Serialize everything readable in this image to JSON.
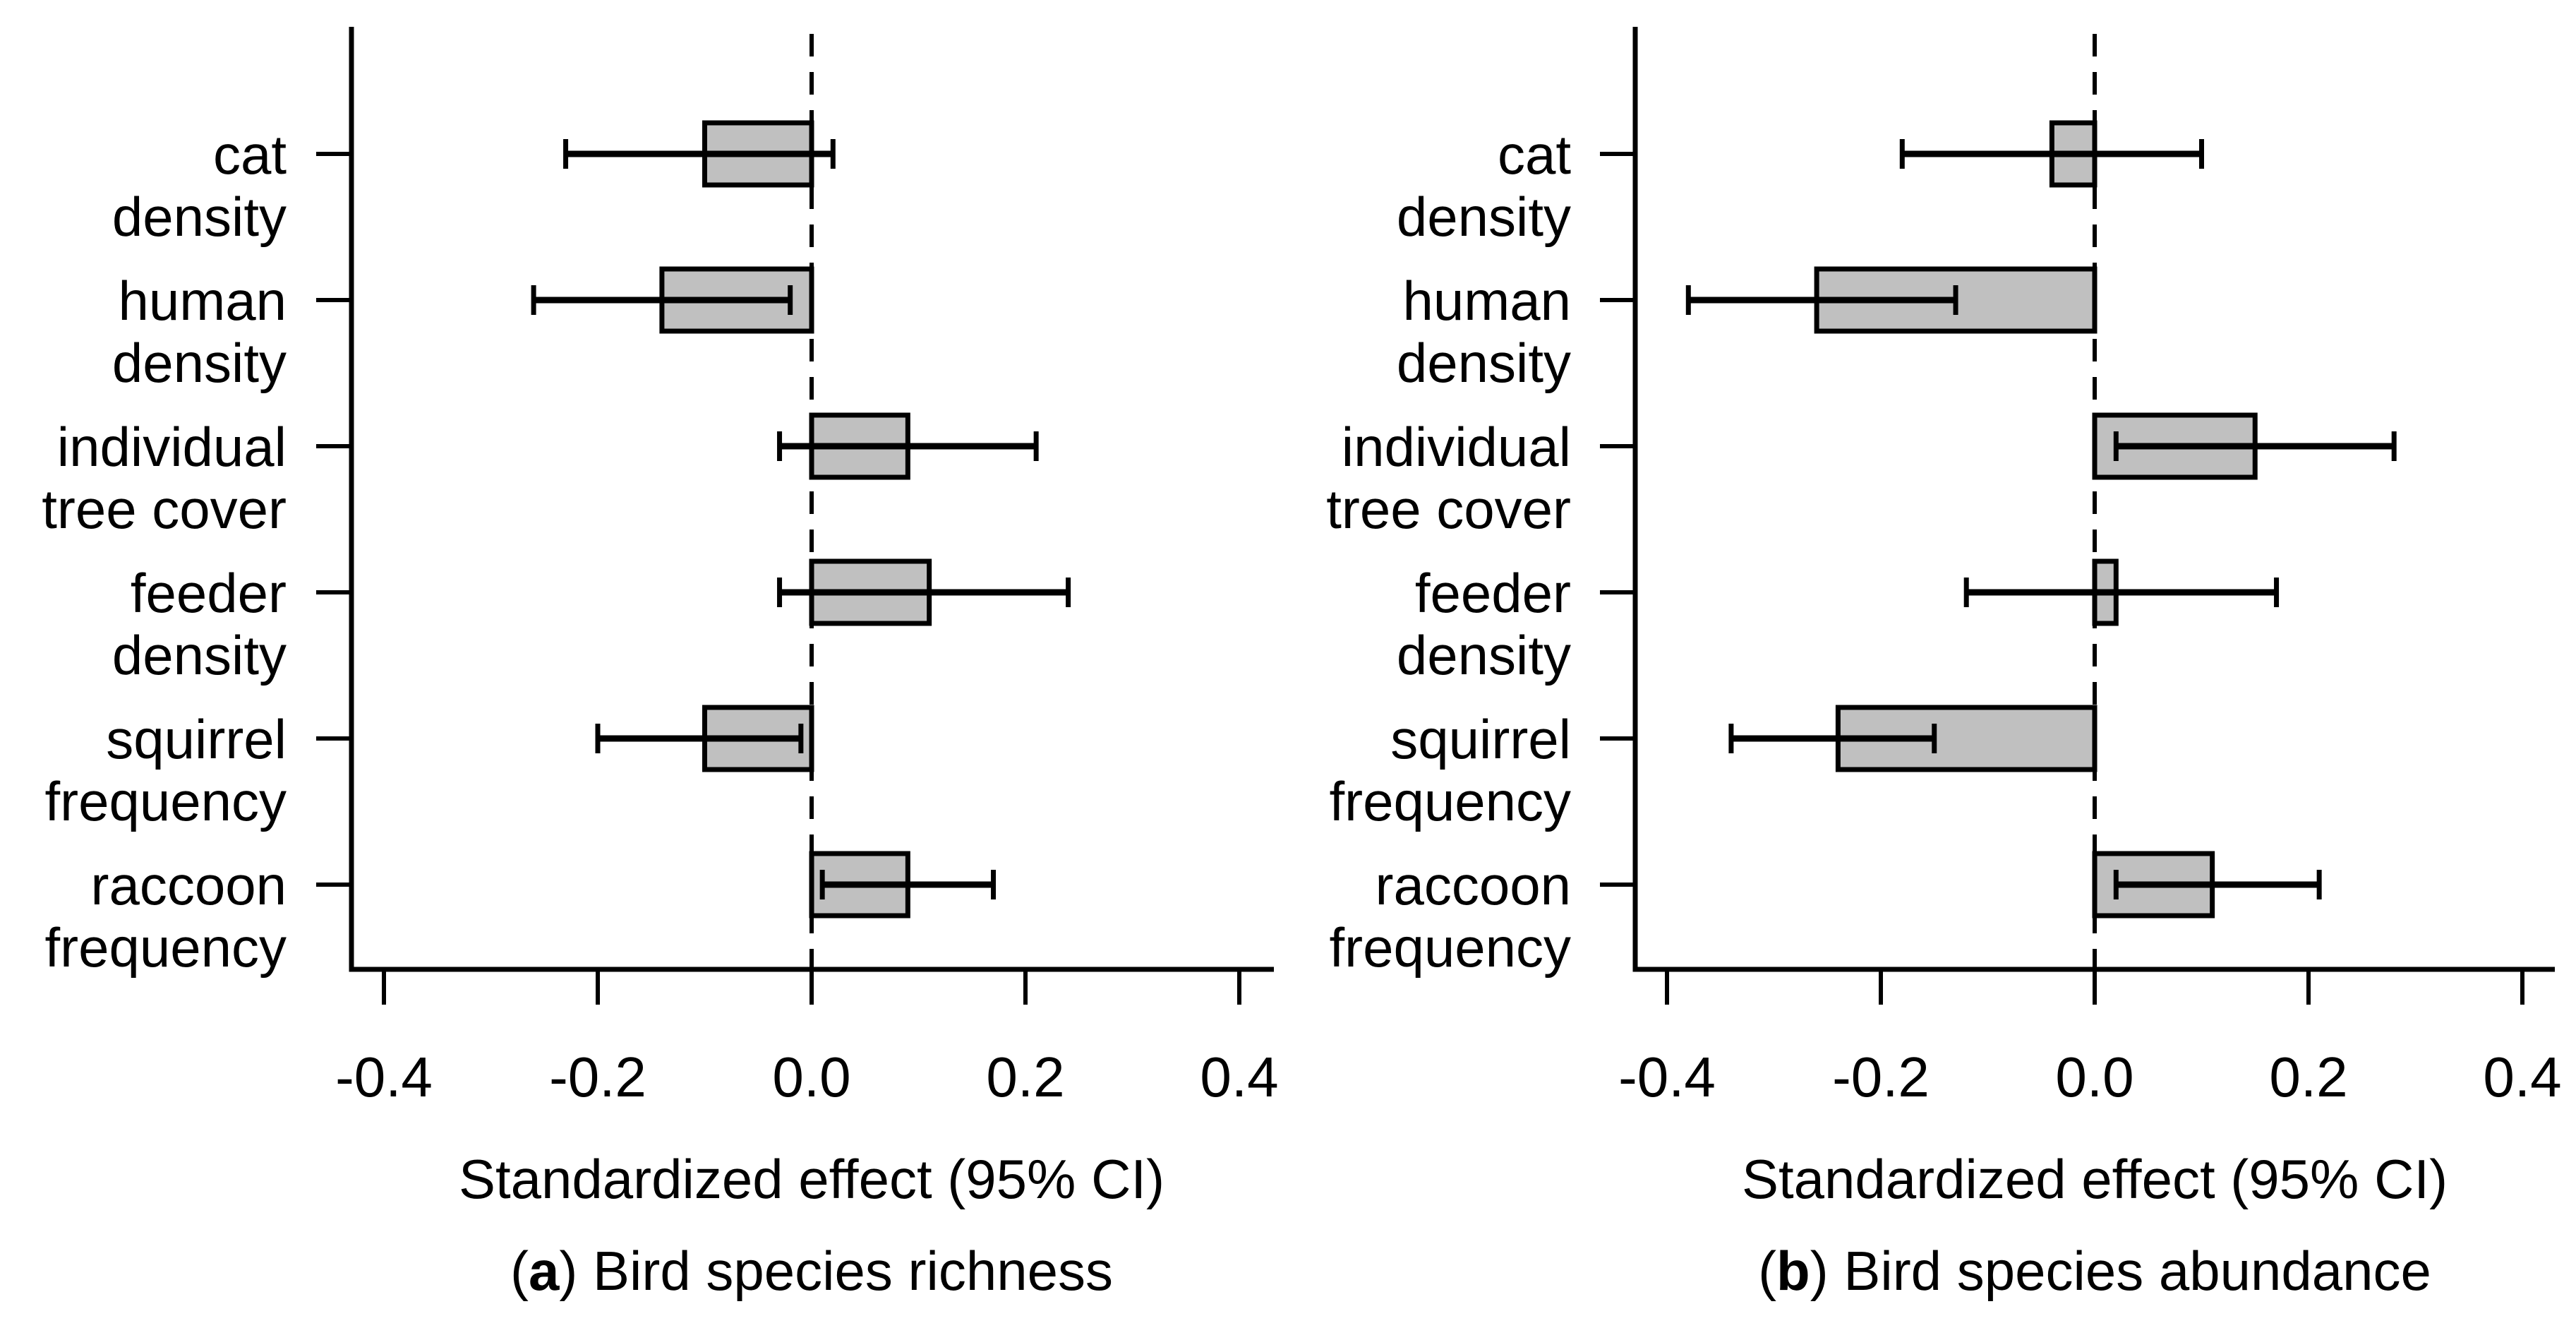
{
  "figure": {
    "background": "#ffffff",
    "bar_fill": "#c0c0c0",
    "line_color": "#000000"
  },
  "chart_data": [
    {
      "type": "bar",
      "orientation": "horizontal",
      "title": "(a) Bird species richness",
      "caption_parts": {
        "open": "(",
        "letter": "a",
        "rest": ") Bird species richness"
      },
      "xlabel": "Standardized effect (95% CI)",
      "xlim": [
        -0.45,
        0.45
      ],
      "xticks": [
        -0.4,
        -0.2,
        0.0,
        0.2,
        0.4
      ],
      "xtick_labels": [
        "-0.4",
        "-0.2",
        "0.0",
        "0.2",
        "0.4"
      ],
      "grid": false,
      "zero_line": "dashed",
      "bar_color": "#c0c0c0",
      "categories": [
        [
          "cat",
          "density"
        ],
        [
          "human",
          "density"
        ],
        [
          "individual",
          "tree cover"
        ],
        [
          "feeder",
          "density"
        ],
        [
          "squirrel",
          "frequency"
        ],
        [
          "raccoon",
          "frequency"
        ]
      ],
      "values": [
        -0.1,
        -0.14,
        0.09,
        0.11,
        -0.1,
        0.09
      ],
      "ci_low": [
        -0.23,
        -0.26,
        -0.03,
        -0.03,
        -0.2,
        0.01
      ],
      "ci_high": [
        0.02,
        -0.02,
        0.21,
        0.24,
        -0.01,
        0.17
      ]
    },
    {
      "type": "bar",
      "orientation": "horizontal",
      "title": "(b) Bird species abundance",
      "caption_parts": {
        "open": "(",
        "letter": "b",
        "rest": ") Bird species abundance"
      },
      "xlabel": "Standardized effect (95% CI)",
      "xlim": [
        -0.45,
        0.45
      ],
      "xticks": [
        -0.4,
        -0.2,
        0.0,
        0.2,
        0.4
      ],
      "xtick_labels": [
        "-0.4",
        "-0.2",
        "0.0",
        "0.2",
        "0.4"
      ],
      "grid": false,
      "zero_line": "dashed",
      "bar_color": "#c0c0c0",
      "categories": [
        [
          "cat",
          "density"
        ],
        [
          "human",
          "density"
        ],
        [
          "individual",
          "tree cover"
        ],
        [
          "feeder",
          "density"
        ],
        [
          "squirrel",
          "frequency"
        ],
        [
          "raccoon",
          "frequency"
        ]
      ],
      "values": [
        -0.04,
        -0.26,
        0.15,
        0.02,
        -0.24,
        0.11
      ],
      "ci_low": [
        -0.18,
        -0.38,
        0.02,
        -0.12,
        -0.34,
        0.02
      ],
      "ci_high": [
        0.1,
        -0.13,
        0.28,
        0.17,
        -0.15,
        0.21
      ]
    }
  ]
}
